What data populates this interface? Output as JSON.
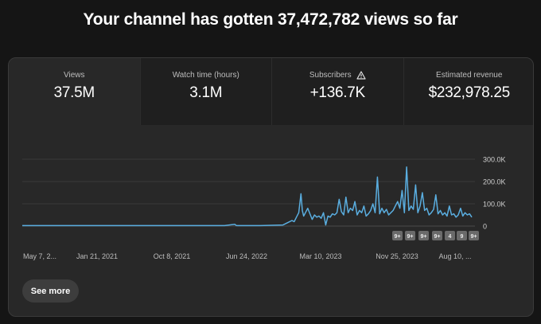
{
  "headline": "Your channel has gotten 37,472,782 views so far",
  "tabs": [
    {
      "label": "Views",
      "value": "37.5M",
      "active": true
    },
    {
      "label": "Watch time (hours)",
      "value": "3.1M",
      "active": false
    },
    {
      "label": "Subscribers",
      "value": "+136.7K",
      "active": false,
      "icon": "warning-icon"
    },
    {
      "label": "Estimated revenue",
      "value": "$232,978.25",
      "active": false
    }
  ],
  "see_more_label": "See more",
  "markers": [
    "9+",
    "9+",
    "9+",
    "9+",
    "4",
    "9",
    "9+"
  ],
  "colors": {
    "line": "#5aaee0",
    "background": "#151515",
    "panel": "#282828"
  },
  "chart_data": {
    "type": "line",
    "x_tick_labels": [
      "May 7, 2...",
      "Jan 21, 2021",
      "Oct 8, 2021",
      "Jun 24, 2022",
      "Mar 10, 2023",
      "Nov 25, 2023",
      "Aug 10, ..."
    ],
    "y_tick_labels": [
      "300.0K",
      "200.0K",
      "100.0K",
      "0"
    ],
    "ylim": [
      0,
      300000
    ],
    "y_ticks": [
      300000,
      200000,
      100000,
      0
    ],
    "grid": true,
    "series": [
      {
        "x": [
          0,
          0.45,
          0.473,
          0.476,
          0.479,
          0.53,
          0.58,
          0.59,
          0.6,
          0.605,
          0.61,
          0.615,
          0.62,
          0.623,
          0.626,
          0.63,
          0.635,
          0.64,
          0.645,
          0.65,
          0.655,
          0.66,
          0.665,
          0.67,
          0.675,
          0.68,
          0.685,
          0.69,
          0.695,
          0.7,
          0.705,
          0.71,
          0.715,
          0.72,
          0.725,
          0.73,
          0.735,
          0.74,
          0.745,
          0.75,
          0.755,
          0.76,
          0.765,
          0.77,
          0.775,
          0.78,
          0.785,
          0.79,
          0.795,
          0.8,
          0.805,
          0.81,
          0.815,
          0.82,
          0.825,
          0.83,
          0.835,
          0.84,
          0.845,
          0.85,
          0.855,
          0.86,
          0.865,
          0.87,
          0.875,
          0.88,
          0.885,
          0.89,
          0.895,
          0.9,
          0.905,
          0.91,
          0.915,
          0.92,
          0.925,
          0.93,
          0.935,
          0.94,
          0.945,
          0.95,
          0.955,
          0.96,
          0.965,
          0.97,
          0.975,
          0.98,
          0.985,
          0.99,
          0.995,
          1.0
        ],
        "y": [
          2000,
          2000,
          8000,
          3000,
          2000,
          2000,
          5000,
          15000,
          25000,
          20000,
          40000,
          60000,
          145000,
          70000,
          45000,
          60000,
          80000,
          55000,
          30000,
          50000,
          40000,
          45000,
          35000,
          60000,
          5000,
          45000,
          40000,
          55000,
          50000,
          60000,
          120000,
          65000,
          50000,
          130000,
          60000,
          80000,
          70000,
          110000,
          50000,
          70000,
          60000,
          90000,
          45000,
          55000,
          70000,
          100000,
          60000,
          220000,
          55000,
          80000,
          60000,
          75000,
          50000,
          60000,
          70000,
          90000,
          110000,
          80000,
          160000,
          60000,
          265000,
          70000,
          90000,
          75000,
          185000,
          60000,
          90000,
          150000,
          70000,
          80000,
          50000,
          60000,
          75000,
          140000,
          55000,
          70000,
          50000,
          60000,
          45000,
          90000,
          50000,
          55000,
          40000,
          50000,
          80000,
          45000,
          60000,
          50000,
          55000,
          40000
        ]
      }
    ]
  }
}
